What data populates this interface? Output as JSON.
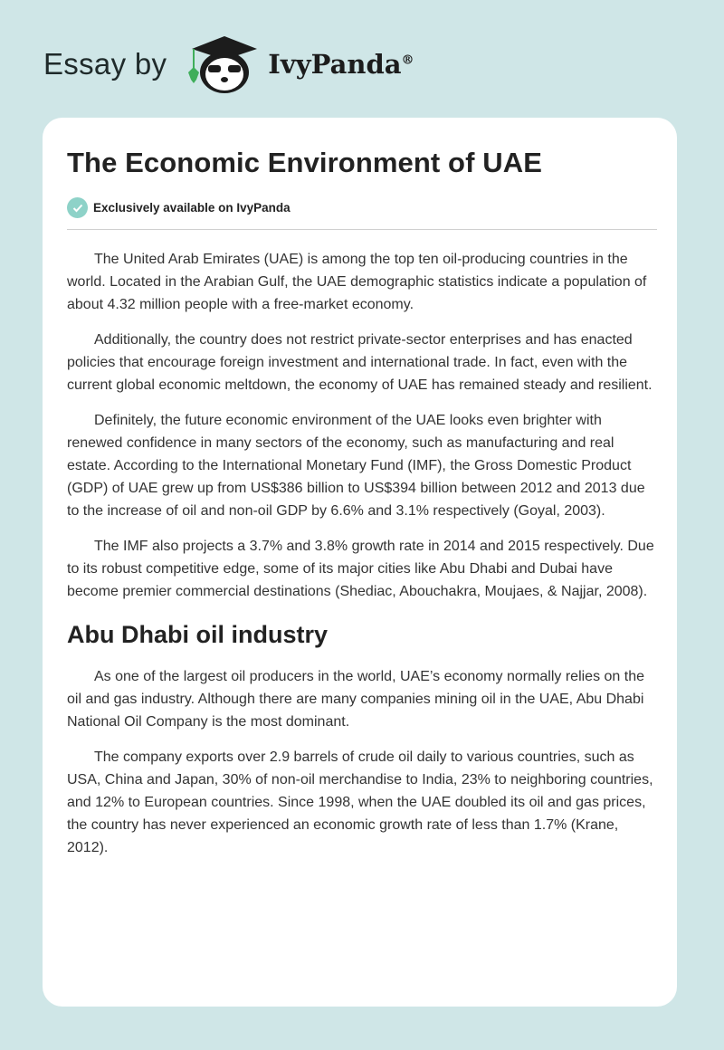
{
  "header": {
    "essay_by": "Essay by",
    "brand": "IvyPanda",
    "registered": "®"
  },
  "article": {
    "title": "The Economic Environment of UAE",
    "badge": "Exclusively available on IvyPanda",
    "paragraphs": [
      "The United Arab Emirates (UAE) is among the top ten oil-producing countries in the world. Located in the Arabian Gulf, the UAE demographic statistics indicate a population of about 4.32 million people with a free-market economy.",
      "Additionally, the country does not restrict private-sector enterprises and has enacted policies that encourage foreign investment and international trade. In fact, even with the current global economic meltdown, the economy of UAE has remained steady and resilient.",
      "Definitely, the future economic environment of the UAE looks even brighter with renewed confidence in many sectors of the economy, such as manufacturing and real estate. According to the International Monetary Fund (IMF), the Gross Domestic Product (GDP) of UAE grew up from US$386 billion to US$394 billion between 2012 and 2013 due to the increase of oil and non-oil GDP by 6.6% and 3.1% respectively (Goyal, 2003).",
      "The IMF also projects a 3.7% and 3.8% growth rate in 2014 and 2015 respectively. Due to its robust competitive edge, some of its major cities like Abu Dhabi and Dubai have become premier commercial destinations (Shediac, Abouchakra, Moujaes, & Najjar, 2008)."
    ],
    "section2": {
      "heading": "Abu Dhabi oil industry",
      "paragraphs": [
        "As one of the largest oil producers in the world, UAE’s economy normally relies on the oil and gas industry. Although there are many companies mining oil in the UAE, Abu Dhabi National Oil Company is the most dominant.",
        "The company exports over 2.9 barrels of crude oil daily to various countries, such as USA, China and Japan, 30% of non-oil merchandise to India, 23% to neighboring countries, and 12% to European countries. Since 1998, when the UAE doubled its oil and gas prices, the country has never experienced an economic growth rate of less than 1.7% (Krane, 2012)."
      ]
    }
  },
  "colors": {
    "background": "#cfe6e7",
    "badge": "#8ed2c8",
    "ivy_green": "#3fae5a"
  }
}
